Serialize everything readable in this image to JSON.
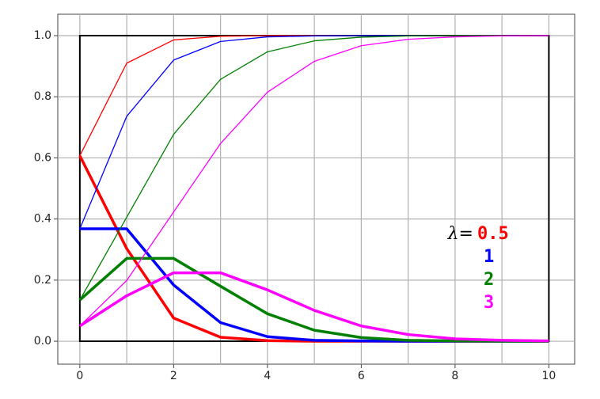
{
  "chart_data": {
    "type": "line",
    "x": [
      0,
      1,
      2,
      3,
      4,
      5,
      6,
      7,
      8,
      9,
      10
    ],
    "xlim": [
      -0.47,
      10.55
    ],
    "ylim": [
      -0.075,
      1.07
    ],
    "xticks": [
      0,
      2,
      4,
      6,
      8,
      10
    ],
    "x_gridlines": [
      0,
      1,
      2,
      3,
      4,
      5,
      6,
      7,
      8,
      9,
      10
    ],
    "yticks": [
      {
        "value": 0,
        "label": "0.0"
      },
      {
        "value": 0.2,
        "label": "0.2"
      },
      {
        "value": 0.4,
        "label": "0.4"
      },
      {
        "value": 0.6,
        "label": "0.6"
      },
      {
        "value": 0.8,
        "label": "0.8"
      },
      {
        "value": 1,
        "label": "1.0"
      }
    ],
    "grid": true,
    "legend_title": "λ=",
    "series": [
      {
        "name": "0.5",
        "color": "#ff0000",
        "pmf": [
          0.607,
          0.303,
          0.076,
          0.013,
          0.002,
          0.0,
          0.0,
          0.0,
          0.0,
          0.0,
          0.0
        ],
        "cdf": [
          0.607,
          0.91,
          0.986,
          0.998,
          1.0,
          1.0,
          1.0,
          1.0,
          1.0,
          1.0,
          1.0
        ]
      },
      {
        "name": "1",
        "color": "#0000ff",
        "pmf": [
          0.368,
          0.368,
          0.184,
          0.061,
          0.015,
          0.003,
          0.001,
          0.0,
          0.0,
          0.0,
          0.0
        ],
        "cdf": [
          0.368,
          0.736,
          0.92,
          0.981,
          0.996,
          0.999,
          1.0,
          1.0,
          1.0,
          1.0,
          1.0
        ]
      },
      {
        "name": "2",
        "color": "#008000",
        "pmf": [
          0.135,
          0.271,
          0.271,
          0.18,
          0.09,
          0.036,
          0.012,
          0.003,
          0.001,
          0.0,
          0.0
        ],
        "cdf": [
          0.135,
          0.406,
          0.677,
          0.857,
          0.947,
          0.983,
          0.995,
          0.999,
          1.0,
          1.0,
          1.0
        ]
      },
      {
        "name": "3",
        "color": "#ff00ff",
        "pmf": [
          0.05,
          0.149,
          0.224,
          0.224,
          0.168,
          0.101,
          0.05,
          0.022,
          0.008,
          0.003,
          0.001
        ],
        "cdf": [
          0.05,
          0.199,
          0.423,
          0.647,
          0.815,
          0.916,
          0.967,
          0.988,
          0.996,
          0.999,
          1.0
        ]
      }
    ]
  }
}
